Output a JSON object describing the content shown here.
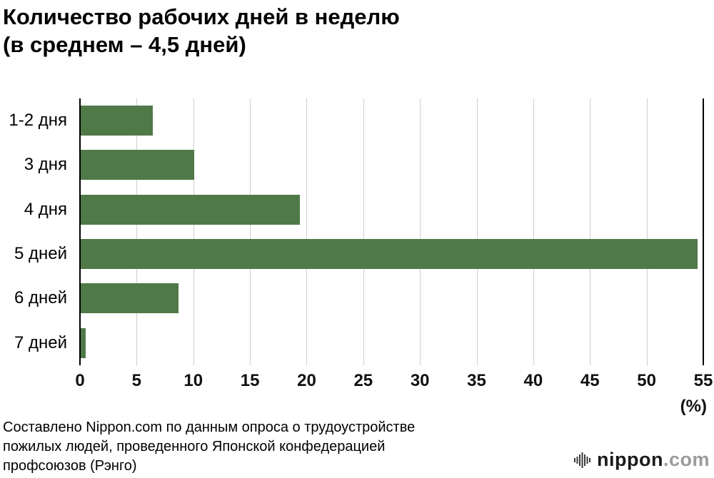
{
  "title": {
    "line1": "Количество рабочих дней в неделю",
    "line2": "(в среднем – 4,5 дней)"
  },
  "chart_data": {
    "type": "bar",
    "orientation": "horizontal",
    "title": "Количество рабочих дней в неделю (в среднем – 4,5 дней)",
    "categories": [
      "1-2 дня",
      "3 дня",
      "4 дня",
      "5 дней",
      "6 дней",
      "7 дней"
    ],
    "values": [
      6.4,
      10.1,
      19.4,
      54.5,
      8.7,
      0.5
    ],
    "xlabel": "(%)",
    "ylabel": "",
    "xlim": [
      0,
      55
    ],
    "xticks": [
      0,
      5,
      10,
      15,
      20,
      25,
      30,
      35,
      40,
      45,
      50,
      55
    ],
    "unit_label": "(%)",
    "grid": true,
    "bar_color": "#507948",
    "gridline_color": "#cfcfcf",
    "axis_color": "#000000",
    "legend": "none"
  },
  "footer": {
    "lines": [
      "Составлено Nippon.com по данным опроса о трудоустройстве",
      "пожилых людей, проведенного Японской конфедерацией",
      "профсоюзов (Рэнго)"
    ]
  },
  "logo": {
    "icon": "soundwave-icon",
    "text": "nippon",
    "domain": ".com"
  }
}
